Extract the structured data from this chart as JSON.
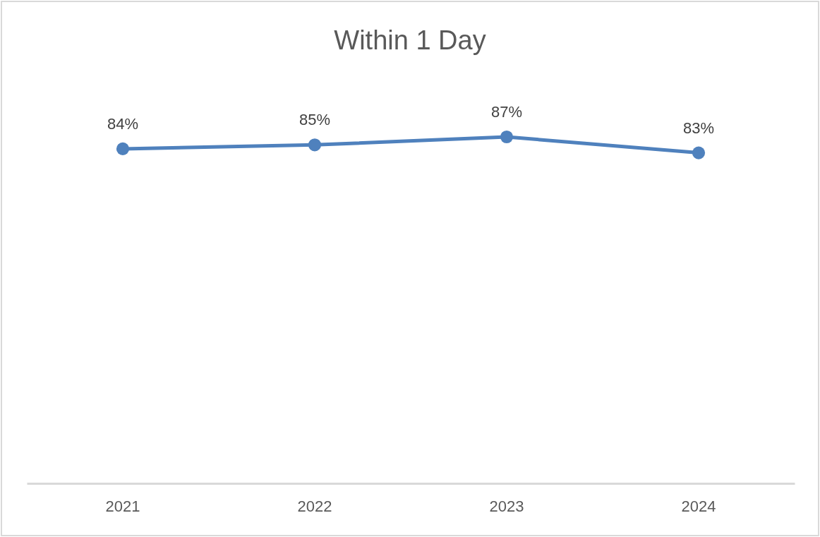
{
  "chart_data": {
    "type": "line",
    "title": "Within 1 Day",
    "categories": [
      "2021",
      "2022",
      "2023",
      "2024"
    ],
    "series": [
      {
        "color": "#4f81bd",
        "values": [
          84,
          85,
          87,
          83
        ],
        "value_labels": [
          "84%",
          "85%",
          "87%",
          "83%"
        ]
      }
    ],
    "marker": "circle",
    "line_style": "solid"
  }
}
